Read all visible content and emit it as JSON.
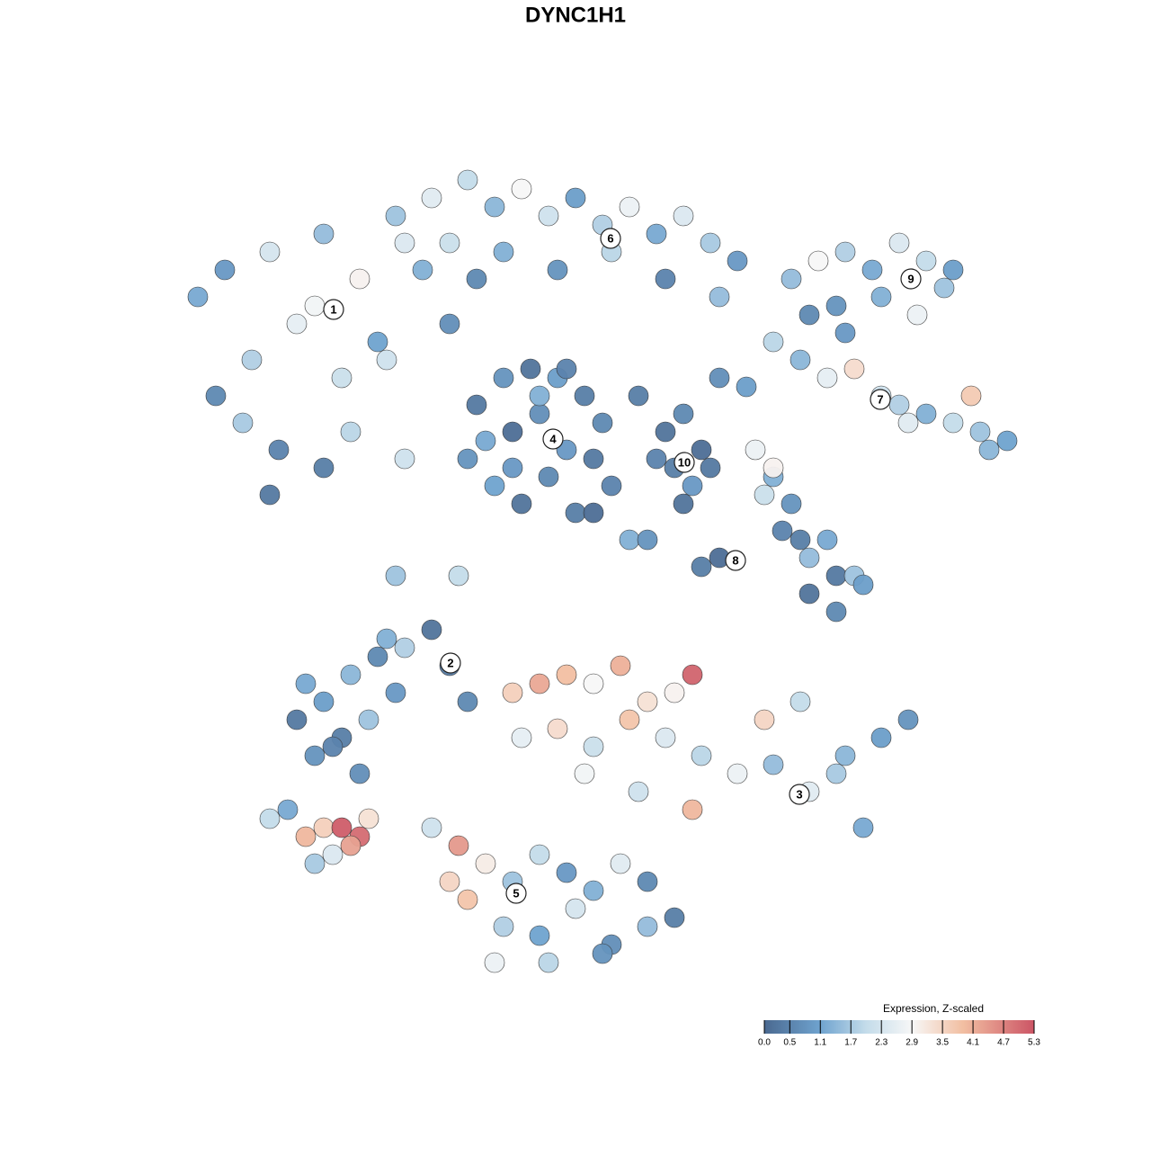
{
  "chart_data": {
    "type": "scatter",
    "title": "DYNC1H1",
    "xlim": [
      0,
      128
    ],
    "ylim": [
      128,
      0
    ],
    "series": [
      {
        "x": [
          22,
          25,
          28,
          30,
          33,
          36,
          38,
          40,
          42,
          45,
          24,
          27,
          31,
          35,
          39,
          43,
          47,
          50,
          30,
          36,
          44,
          48,
          52,
          55,
          58,
          61,
          64,
          67,
          70,
          73,
          76,
          79,
          82,
          50,
          56,
          62,
          68,
          74,
          80,
          53,
          53,
          56,
          59,
          62,
          65,
          67,
          54,
          57,
          60,
          63,
          66,
          68,
          55,
          58,
          61,
          64,
          52,
          60,
          63,
          57,
          74,
          76,
          78,
          75,
          77,
          79,
          73,
          76,
          71,
          80,
          83,
          88,
          91,
          94,
          97,
          100,
          103,
          105,
          93,
          98,
          102,
          106,
          90,
          86,
          89,
          92,
          95,
          98,
          100,
          103,
          106,
          109,
          112,
          94,
          101,
          108,
          110,
          84,
          86,
          88,
          87,
          90,
          93,
          85,
          89,
          92,
          95,
          90,
          93,
          96,
          80,
          78,
          86,
          33,
          36,
          39,
          42,
          45,
          48,
          35,
          38,
          41,
          44,
          50,
          34,
          37,
          40,
          43,
          52,
          57,
          60,
          63,
          66,
          69,
          72,
          75,
          58,
          62,
          66,
          70,
          74,
          78,
          82,
          86,
          90,
          94,
          98,
          101,
          85,
          89,
          93,
          96,
          65,
          71,
          77,
          77,
          48,
          51,
          54,
          57,
          60,
          63,
          66,
          69,
          72,
          75,
          52,
          56,
          60,
          64,
          68,
          72,
          55,
          61,
          67,
          50,
          30,
          32,
          34,
          36,
          38,
          40,
          35,
          39,
          41,
          37,
          44,
          51,
          66,
          70,
          45,
          72
        ],
        "y": [
          33,
          30,
          40,
          28,
          36,
          26,
          42,
          31,
          38,
          27,
          44,
          47,
          50,
          34,
          48,
          40,
          30,
          36,
          55,
          52,
          24,
          22,
          20,
          23,
          21,
          24,
          22,
          25,
          23,
          26,
          24,
          27,
          29,
          27,
          28,
          30,
          28,
          31,
          33,
          31,
          45,
          42,
          41,
          42,
          44,
          47,
          49,
          48,
          46,
          50,
          51,
          54,
          54,
          56,
          53,
          57,
          51,
          44,
          41,
          52,
          48,
          46,
          50,
          52,
          54,
          52,
          51,
          56,
          44,
          42,
          43,
          31,
          29,
          28,
          30,
          27,
          29,
          32,
          34,
          33,
          35,
          30,
          35,
          38,
          40,
          42,
          41,
          44,
          45,
          46,
          47,
          48,
          49,
          37,
          47,
          44,
          50,
          50,
          53,
          56,
          59,
          62,
          64,
          55,
          60,
          60,
          64,
          66,
          68,
          65,
          62,
          63,
          52,
          80,
          78,
          75,
          73,
          72,
          70,
          84,
          82,
          80,
          77,
          74,
          76,
          83,
          86,
          71,
          78,
          77,
          76,
          75,
          76,
          74,
          78,
          77,
          82,
          81,
          83,
          80,
          82,
          84,
          86,
          85,
          88,
          84,
          82,
          80,
          80,
          78,
          86,
          92,
          86,
          88,
          90,
          75,
          92,
          94,
          96,
          98,
          95,
          97,
          99,
          96,
          98,
          102,
          100,
          103,
          104,
          101,
          105,
          103,
          107,
          107,
          106,
          98,
          91,
          90,
          93,
          92,
          92,
          93,
          96,
          94,
          91,
          95,
          64,
          64,
          57,
          60,
          51,
          60
        ],
        "values": [
          1.2,
          0.9,
          1.8,
          2.3,
          2.6,
          1.5,
          2.1,
          3.0,
          1.1,
          2.4,
          0.6,
          1.7,
          0.5,
          2.8,
          1.9,
          2.2,
          1.3,
          0.7,
          0.3,
          0.4,
          1.6,
          2.5,
          2.0,
          1.4,
          2.9,
          2.2,
          1.0,
          1.8,
          2.7,
          1.2,
          2.4,
          1.7,
          0.9,
          2.1,
          1.3,
          0.8,
          1.9,
          0.5,
          1.5,
          0.6,
          0.3,
          0.8,
          0.2,
          1.0,
          0.4,
          0.6,
          1.2,
          0.1,
          0.7,
          0.9,
          0.3,
          0.5,
          1.1,
          0.2,
          0.6,
          0.4,
          0.8,
          1.3,
          0.5,
          0.9,
          0.2,
          0.6,
          0.1,
          0.4,
          0.9,
          0.3,
          0.5,
          0.2,
          0.4,
          0.7,
          1.0,
          1.5,
          2.9,
          1.8,
          1.2,
          2.4,
          2.0,
          1.6,
          0.8,
          1.3,
          2.7,
          1.0,
          0.6,
          1.9,
          1.4,
          2.6,
          3.4,
          2.2,
          1.8,
          1.3,
          2.0,
          1.6,
          1.1,
          0.9,
          2.5,
          3.7,
          1.4,
          2.7,
          1.3,
          0.8,
          0.5,
          1.5,
          0.3,
          2.1,
          0.4,
          1.2,
          1.6,
          0.2,
          0.6,
          1.0,
          0.1,
          0.4,
          3.0,
          0.3,
          1.0,
          1.4,
          0.6,
          1.8,
          0.2,
          0.8,
          0.4,
          1.6,
          0.9,
          0.3,
          1.2,
          0.5,
          0.7,
          1.3,
          0.6,
          3.6,
          4.2,
          3.9,
          2.9,
          4.1,
          3.3,
          3.0,
          2.6,
          3.4,
          2.1,
          3.8,
          2.4,
          1.9,
          2.7,
          1.5,
          2.5,
          1.4,
          1.0,
          0.8,
          3.5,
          2.0,
          1.7,
          1.2,
          2.8,
          2.2,
          4.0,
          5.1,
          2.2,
          4.4,
          3.1,
          1.6,
          2.0,
          0.9,
          1.3,
          2.5,
          0.6,
          0.4,
          3.8,
          1.8,
          1.1,
          2.3,
          0.7,
          1.5,
          2.7,
          1.9,
          0.8,
          3.5,
          2.0,
          1.2,
          4.0,
          3.6,
          5.2,
          5.0,
          1.7,
          4.3,
          3.3,
          2.4,
          1.6,
          2.0,
          0.1,
          1.3,
          2.2,
          0.8
        ]
      }
    ],
    "cluster_labels": [
      {
        "text": "1",
        "x": 37.1,
        "y": 34.4
      },
      {
        "text": "2",
        "x": 50.1,
        "y": 73.7
      },
      {
        "text": "3",
        "x": 88.9,
        "y": 88.3
      },
      {
        "text": "4",
        "x": 61.5,
        "y": 48.8
      },
      {
        "text": "5",
        "x": 57.4,
        "y": 99.3
      },
      {
        "text": "6",
        "x": 67.9,
        "y": 26.5
      },
      {
        "text": "7",
        "x": 97.9,
        "y": 44.4
      },
      {
        "text": "8",
        "x": 81.8,
        "y": 62.3
      },
      {
        "text": "9",
        "x": 101.3,
        "y": 31.0
      },
      {
        "text": "10",
        "x": 76.1,
        "y": 51.4
      }
    ],
    "colorbar": {
      "title": "Expression, Z-scaled",
      "clim": [
        0,
        5.3
      ],
      "ticks": [
        {
          "value": 0,
          "label": "0.0"
        },
        0.5,
        1.1,
        1.7,
        2.3,
        2.9,
        3.5,
        4.1,
        4.7,
        5.3
      ],
      "colorscale": [
        {
          "value": 0,
          "color": "#4a6990"
        },
        {
          "value": 1.1,
          "color": "#6fa3cf"
        },
        {
          "value": 2.0,
          "color": "#c4dcea"
        },
        {
          "value": 2.9,
          "color": "#f7f7f7"
        },
        {
          "value": 3.9,
          "color": "#f2bfa2"
        },
        {
          "value": 5.3,
          "color": "#cc5565"
        }
      ]
    }
  }
}
